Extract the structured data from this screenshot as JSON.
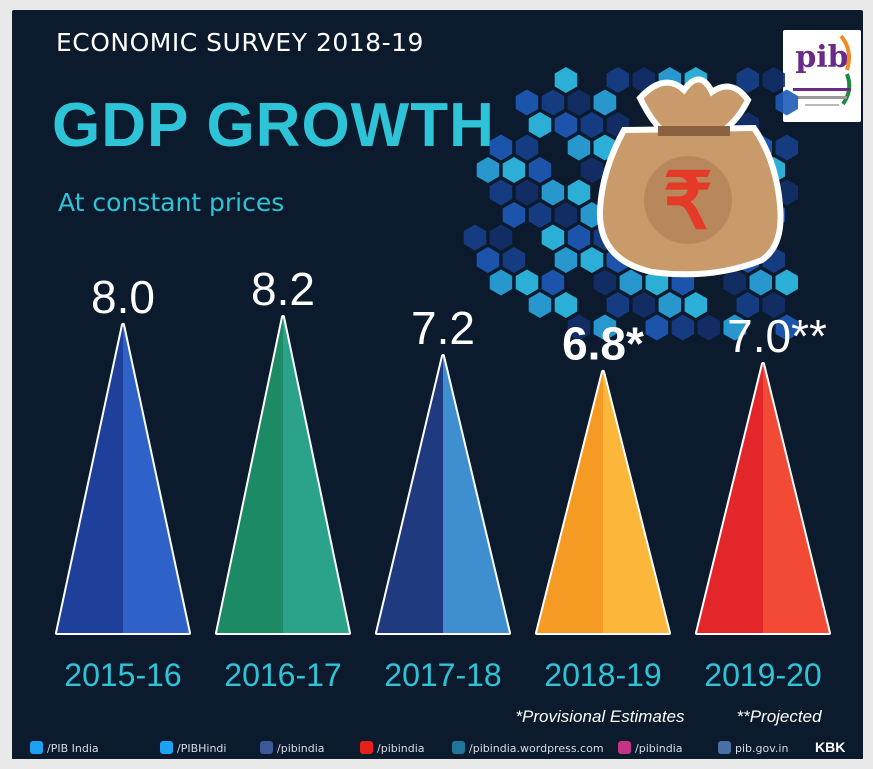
{
  "header": {
    "survey_title": "ECONOMIC SURVEY 2018-19",
    "logo_text": "pib"
  },
  "colors": {
    "background": "#0b1a2c",
    "accent": "#2ec4d8"
  },
  "chart_data": {
    "type": "bar",
    "title": "GDP GROWTH",
    "subtitle": "At constant prices",
    "categories": [
      "2015-16",
      "2016-17",
      "2017-18",
      "2018-19",
      "2019-20"
    ],
    "values": [
      8.0,
      8.2,
      7.2,
      6.8,
      7.0
    ],
    "value_labels": [
      "8.0",
      "8.2",
      "7.2",
      "6.8*",
      "7.0**"
    ],
    "bar_colors": [
      "#1e3f9a",
      "#1c8a64",
      "#1f3a7e",
      "#f59b24",
      "#e3262a"
    ],
    "bar_shades": [
      "#2f62c8",
      "#2aa38a",
      "#3f8fd0",
      "#fcb73a",
      "#f24a35"
    ],
    "notes": [
      "*Provisional Estimates",
      "**Projected"
    ]
  },
  "footer": {
    "items": [
      {
        "label": "/PIB India",
        "icon": "twitter-icon",
        "color": "#1da1f2"
      },
      {
        "label": "/PIBHindi",
        "icon": "twitter-icon",
        "color": "#1da1f2"
      },
      {
        "label": "/pibindia",
        "icon": "facebook-icon",
        "color": "#3b5998"
      },
      {
        "label": "/pibindia",
        "icon": "youtube-icon",
        "color": "#e62117"
      },
      {
        "label": "/pibindia.wordpress.com",
        "icon": "wordpress-icon",
        "color": "#21759b"
      },
      {
        "label": "/pibindia",
        "icon": "instagram-icon",
        "color": "#c13584"
      },
      {
        "label": "pib.gov.in",
        "icon": "web-icon",
        "color": "#4a6fa5"
      }
    ],
    "credit": "KBK"
  }
}
